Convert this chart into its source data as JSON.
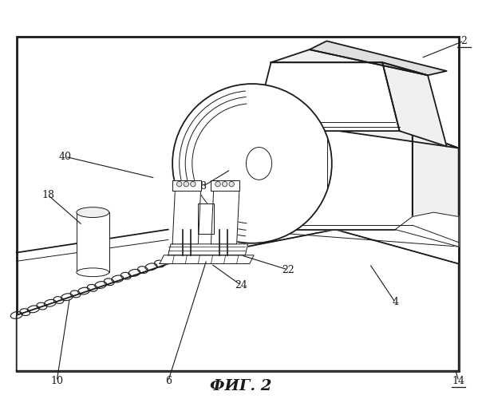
{
  "bg_color": "#ffffff",
  "line_color": "#1a1a1a",
  "fig_width": 6.04,
  "fig_height": 5.0,
  "dpi": 100,
  "caption": "ФИГ. 2",
  "fill_white": "#ffffff",
  "fill_light": "#f0f0f0",
  "fill_mid": "#e0e0e0",
  "lw_main": 1.3,
  "lw_thin": 0.7,
  "lw_med": 1.0
}
